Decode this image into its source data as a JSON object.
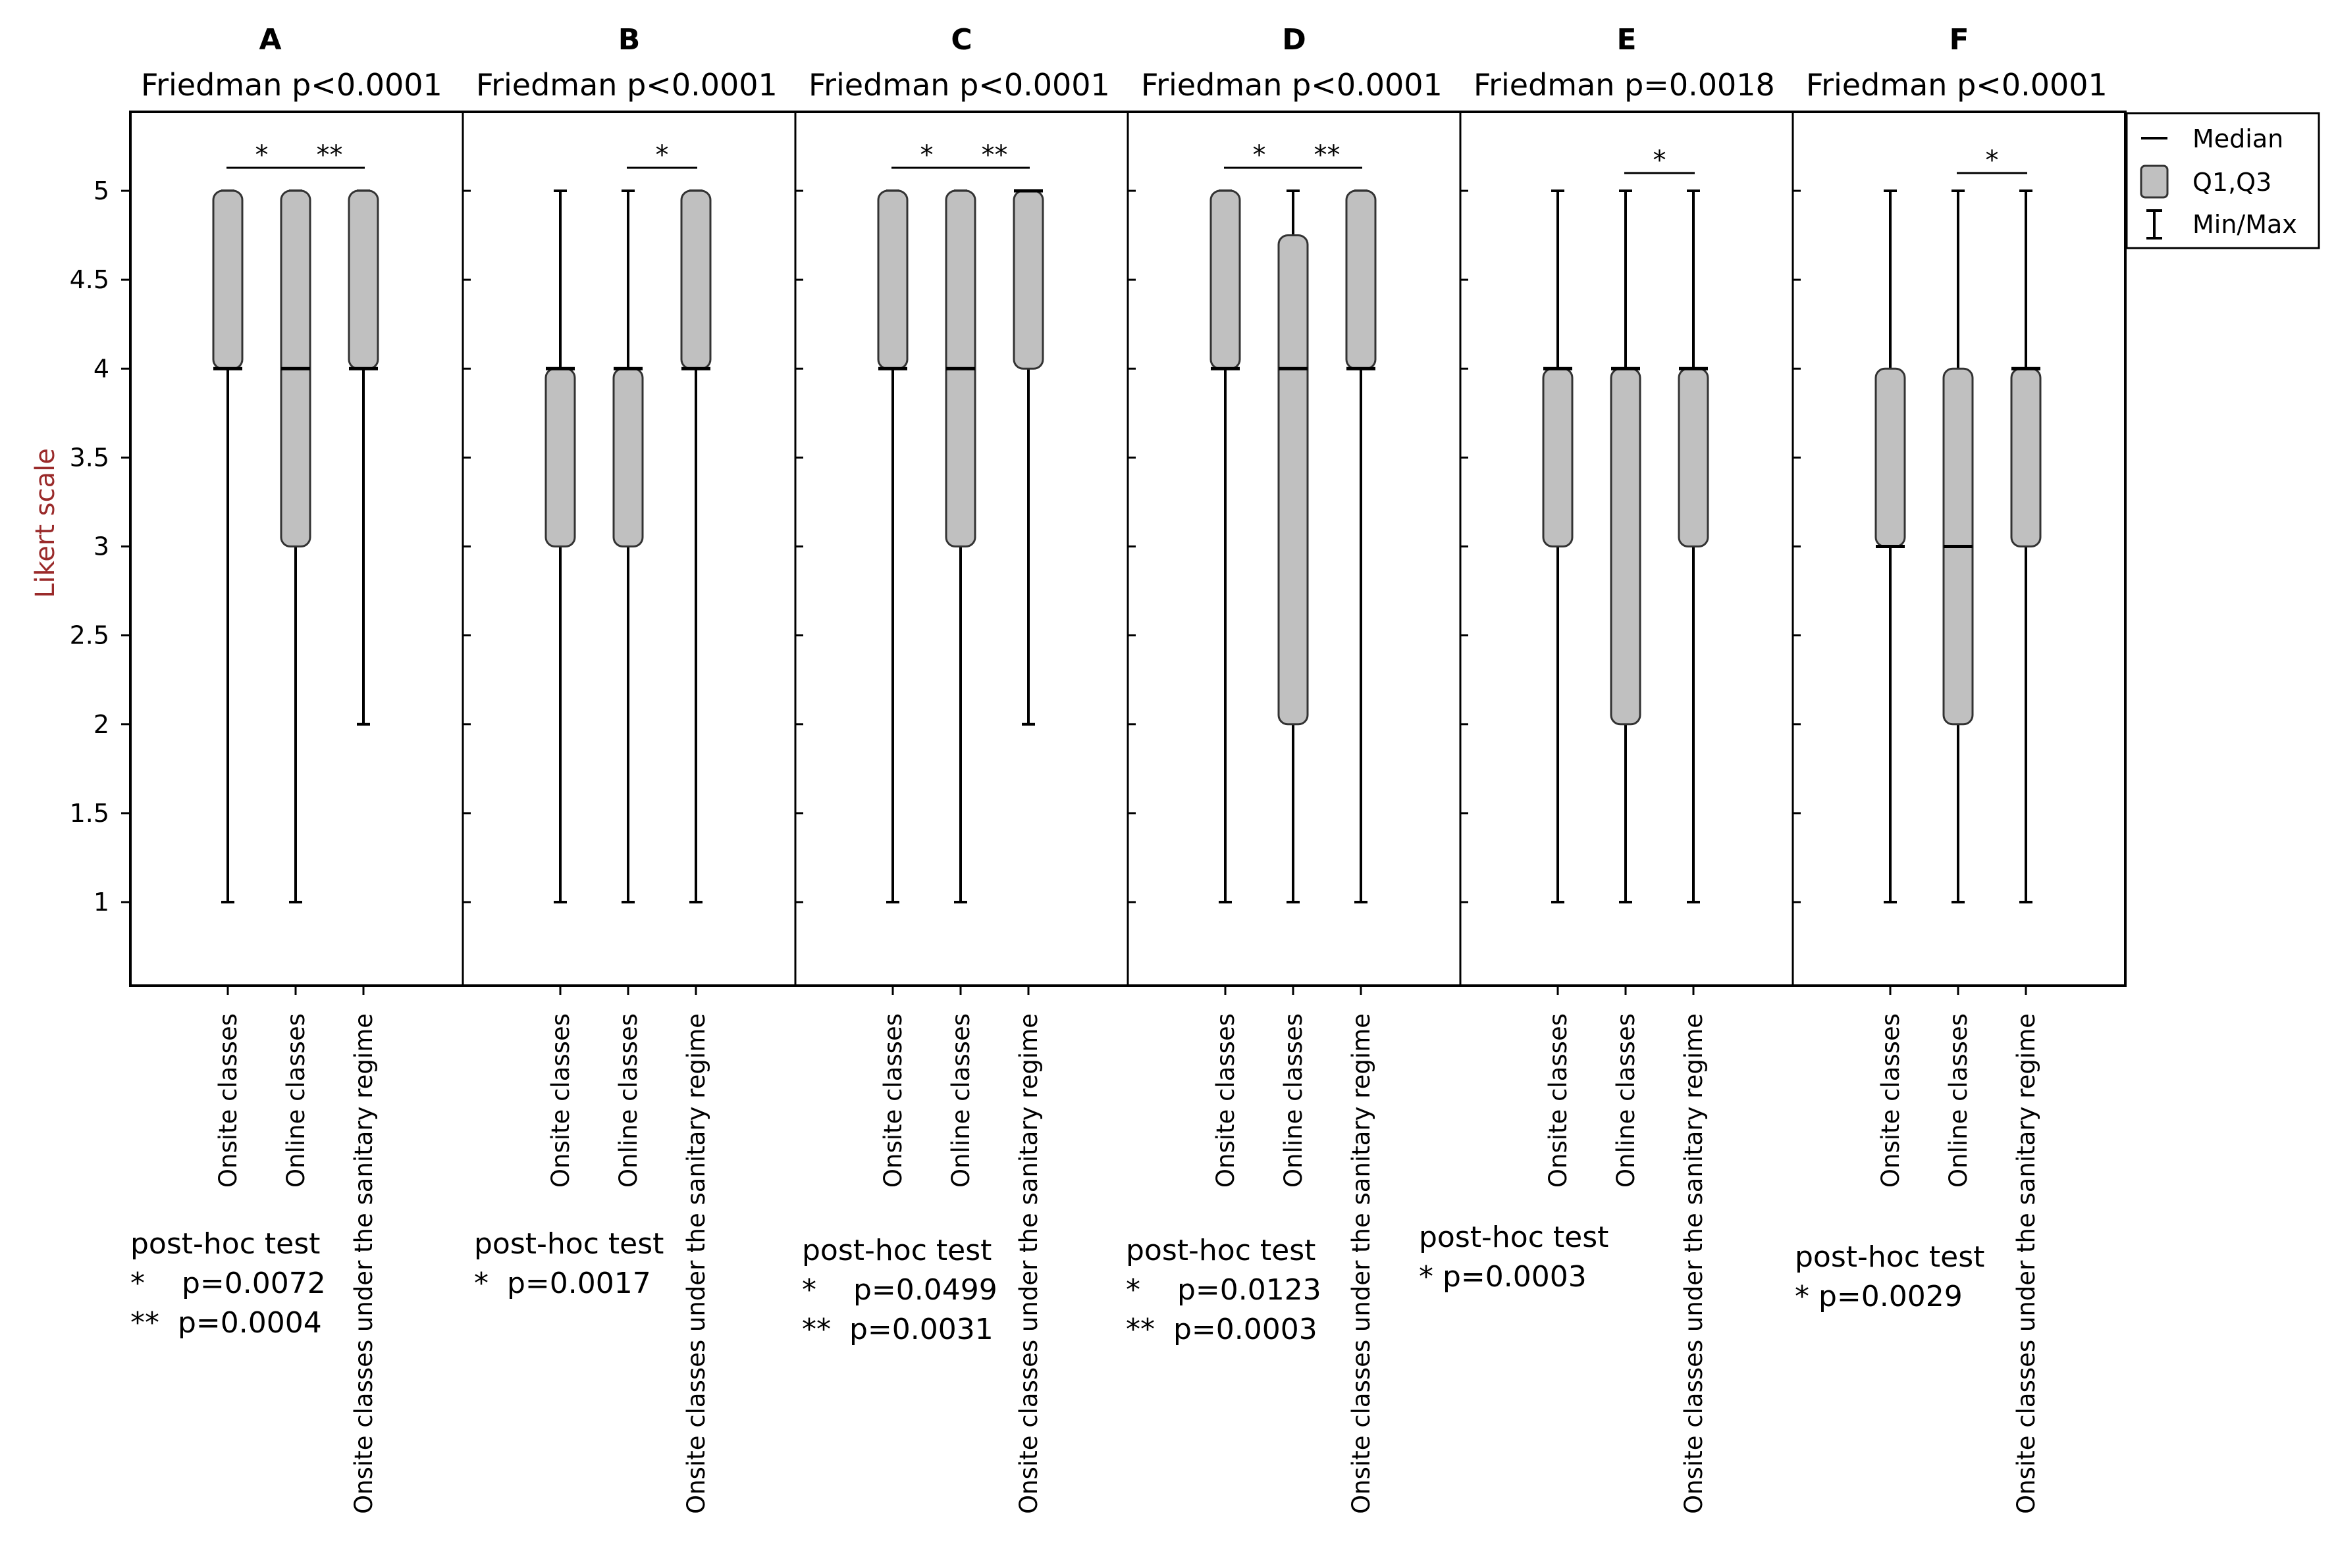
{
  "chart_data": {
    "type": "boxplot",
    "ylabel": "Likert scale",
    "ylim": [
      0.55,
      5.4
    ],
    "yticks": [
      "1",
      "1.5",
      "2",
      "2.5",
      "3",
      "3.5",
      "4",
      "4.5",
      "5"
    ],
    "categories": [
      "Onsite classes",
      "Online classes",
      "Onsite classes under the sanitary regime"
    ],
    "legend": {
      "position": "top-right",
      "entries": [
        "Median",
        "Q1,Q3",
        "Min/Max"
      ]
    },
    "colors": {
      "box_fill": "#c0c0c0",
      "line": "#000000",
      "ylabel": "#9a2a2a"
    },
    "panels": [
      {
        "letter": "A",
        "friedman": "Friedman p<0.0001",
        "boxes": [
          {
            "min": 1,
            "q1": 4,
            "median": 4,
            "q3": 5,
            "max": 5
          },
          {
            "min": 1,
            "q1": 3,
            "median": 4,
            "q3": 5,
            "max": 5
          },
          {
            "min": 2,
            "q1": 4,
            "median": 4,
            "q3": 5,
            "max": 5
          }
        ],
        "significance": [
          {
            "from": 0,
            "to": 1,
            "label": "*"
          },
          {
            "from": 1,
            "to": 2,
            "label": "**"
          }
        ],
        "posthoc_title": "post-hoc test",
        "posthoc": [
          "*    p=0.0072",
          "**  p=0.0004"
        ]
      },
      {
        "letter": "B",
        "friedman": "Friedman p<0.0001",
        "boxes": [
          {
            "min": 1,
            "q1": 3,
            "median": 4,
            "q3": 4,
            "max": 5
          },
          {
            "min": 1,
            "q1": 3,
            "median": 4,
            "q3": 4,
            "max": 5
          },
          {
            "min": 1,
            "q1": 4,
            "median": 4,
            "q3": 5,
            "max": 5
          }
        ],
        "significance": [
          {
            "from": 1,
            "to": 2,
            "label": "*"
          }
        ],
        "posthoc_title": "post-hoc test",
        "posthoc": [
          "*  p=0.0017"
        ]
      },
      {
        "letter": "C",
        "friedman": "Friedman p<0.0001",
        "boxes": [
          {
            "min": 1,
            "q1": 4,
            "median": 4,
            "q3": 5,
            "max": 5
          },
          {
            "min": 1,
            "q1": 3,
            "median": 4,
            "q3": 5,
            "max": 5
          },
          {
            "min": 2,
            "q1": 4,
            "median": 5,
            "q3": 5,
            "max": 5
          }
        ],
        "significance": [
          {
            "from": 0,
            "to": 1,
            "label": "*"
          },
          {
            "from": 1,
            "to": 2,
            "label": "**"
          }
        ],
        "posthoc_title": "post-hoc test",
        "posthoc": [
          "*    p=0.0499",
          "**  p=0.0031"
        ]
      },
      {
        "letter": "D",
        "friedman": "Friedman p<0.0001",
        "boxes": [
          {
            "min": 1,
            "q1": 4,
            "median": 4,
            "q3": 5,
            "max": 5
          },
          {
            "min": 1,
            "q1": 2,
            "median": 4,
            "q3": 4.75,
            "max": 5
          },
          {
            "min": 1,
            "q1": 4,
            "median": 4,
            "q3": 5,
            "max": 5
          }
        ],
        "significance": [
          {
            "from": 0,
            "to": 1,
            "label": "*"
          },
          {
            "from": 1,
            "to": 2,
            "label": "**"
          }
        ],
        "posthoc_title": "post-hoc test",
        "posthoc": [
          "*    p=0.0123",
          "**  p=0.0003"
        ]
      },
      {
        "letter": "E",
        "friedman": "Friedman p=0.0018",
        "boxes": [
          {
            "min": 1,
            "q1": 3,
            "median": 4,
            "q3": 4,
            "max": 5
          },
          {
            "min": 1,
            "q1": 2,
            "median": 4,
            "q3": 4,
            "max": 5
          },
          {
            "min": 1,
            "q1": 3,
            "median": 4,
            "q3": 4,
            "max": 5
          }
        ],
        "significance": [
          {
            "from": 1,
            "to": 2,
            "label": "*"
          }
        ],
        "posthoc_title": "post-hoc test",
        "posthoc": [
          "* p=0.0003"
        ]
      },
      {
        "letter": "F",
        "friedman": "Friedman p<0.0001",
        "boxes": [
          {
            "min": 1,
            "q1": 3,
            "median": 3,
            "q3": 4,
            "max": 5
          },
          {
            "min": 1,
            "q1": 2,
            "median": 3,
            "q3": 4,
            "max": 5
          },
          {
            "min": 1,
            "q1": 3,
            "median": 4,
            "q3": 4,
            "max": 5
          }
        ],
        "significance": [
          {
            "from": 1,
            "to": 2,
            "label": "*"
          }
        ],
        "posthoc_title": "post-hoc test",
        "posthoc": [
          "* p=0.0029"
        ]
      }
    ]
  }
}
